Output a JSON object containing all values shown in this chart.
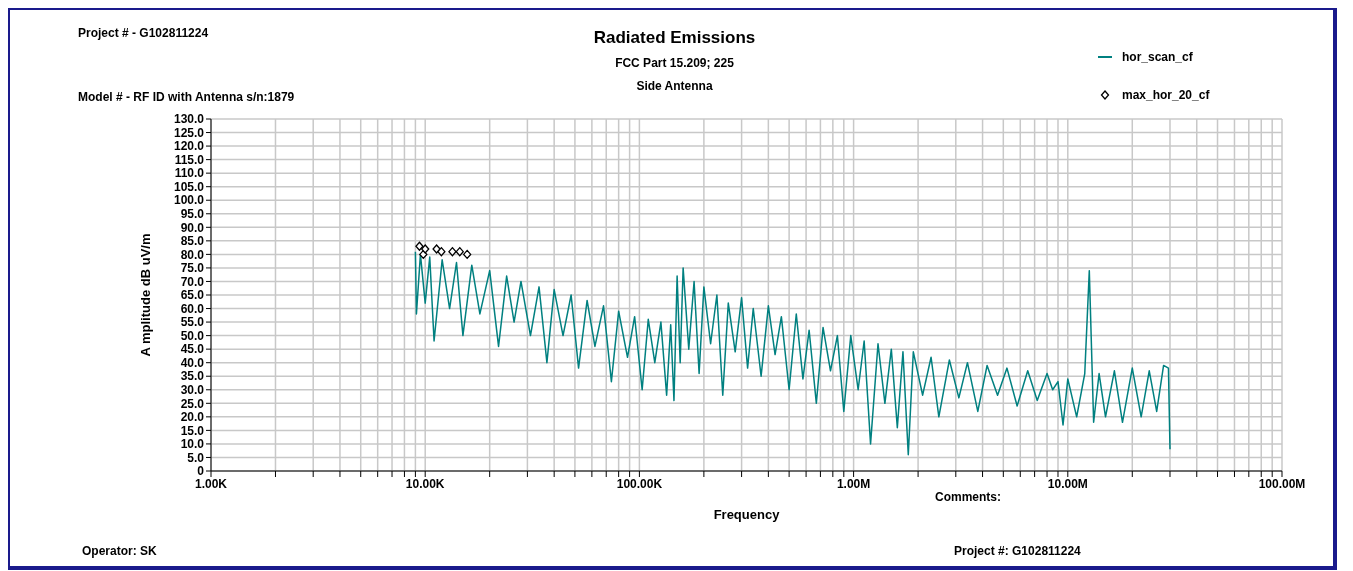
{
  "chart_data": {
    "type": "line",
    "title": "Radiated Emissions",
    "subtitle": "FCC Part 15.209; 225\nSide Antenna",
    "xlabel": "Frequency",
    "ylabel": "A mplitude  dB uV/m",
    "annotations": [
      "Project # - G102811224",
      "Model # - RF ID with Antenna s/n:1879",
      "Comments:",
      "Operator: SK",
      "Project #: G102811224"
    ],
    "log": "x",
    "grid": true,
    "legend": "top right",
    "xlim": [
      1000,
      100000000
    ],
    "xticks": [
      {
        "value": 1000,
        "label": "1.00K"
      },
      {
        "value": 2000,
        "label": null
      },
      {
        "value": 3000,
        "label": null
      },
      {
        "value": 4000,
        "label": null
      },
      {
        "value": 5000,
        "label": null
      },
      {
        "value": 6000,
        "label": null
      },
      {
        "value": 7000,
        "label": null
      },
      {
        "value": 8000,
        "label": null
      },
      {
        "value": 9000,
        "label": null
      },
      {
        "value": 10000,
        "label": "10.00K"
      },
      {
        "value": 20000,
        "label": null
      },
      {
        "value": 30000,
        "label": null
      },
      {
        "value": 40000,
        "label": null
      },
      {
        "value": 50000,
        "label": null
      },
      {
        "value": 60000,
        "label": null
      },
      {
        "value": 70000,
        "label": null
      },
      {
        "value": 80000,
        "label": null
      },
      {
        "value": 90000,
        "label": null
      },
      {
        "value": 100000,
        "label": "100.00K"
      },
      {
        "value": 200000,
        "label": null
      },
      {
        "value": 300000,
        "label": null
      },
      {
        "value": 400000,
        "label": null
      },
      {
        "value": 500000,
        "label": null
      },
      {
        "value": 600000,
        "label": null
      },
      {
        "value": 700000,
        "label": null
      },
      {
        "value": 800000,
        "label": null
      },
      {
        "value": 900000,
        "label": null
      },
      {
        "value": 1000000,
        "label": "1.00M"
      },
      {
        "value": 2000000,
        "label": null
      },
      {
        "value": 3000000,
        "label": null
      },
      {
        "value": 4000000,
        "label": null
      },
      {
        "value": 5000000,
        "label": null
      },
      {
        "value": 6000000,
        "label": null
      },
      {
        "value": 7000000,
        "label": null
      },
      {
        "value": 8000000,
        "label": null
      },
      {
        "value": 9000000,
        "label": null
      },
      {
        "value": 10000000,
        "label": "10.00M"
      },
      {
        "value": 20000000,
        "label": null
      },
      {
        "value": 30000000,
        "label": null
      },
      {
        "value": 40000000,
        "label": null
      },
      {
        "value": 50000000,
        "label": null
      },
      {
        "value": 60000000,
        "label": null
      },
      {
        "value": 70000000,
        "label": null
      },
      {
        "value": 80000000,
        "label": null
      },
      {
        "value": 90000000,
        "label": null
      },
      {
        "value": 100000000,
        "label": "100.00M"
      }
    ],
    "ylim": [
      0,
      130
    ],
    "yticks": [
      0,
      {
        "value": 5,
        "label": "5.0"
      },
      {
        "value": 10,
        "label": "10.0"
      },
      {
        "value": 15,
        "label": "15.0"
      },
      {
        "value": 20,
        "label": "20.0"
      },
      {
        "value": 25,
        "label": "25.0"
      },
      {
        "value": 30,
        "label": "30.0"
      },
      {
        "value": 35,
        "label": "35.0"
      },
      {
        "value": 40,
        "label": "40.0"
      },
      {
        "value": 45,
        "label": "45.0"
      },
      {
        "value": 50,
        "label": "50.0"
      },
      {
        "value": 55,
        "label": "55.0"
      },
      {
        "value": 60,
        "label": "60.0"
      },
      {
        "value": 65,
        "label": "65.0"
      },
      {
        "value": 70,
        "label": "70.0"
      },
      {
        "value": 75,
        "label": "75.0"
      },
      {
        "value": 80,
        "label": "80.0"
      },
      {
        "value": 85,
        "label": "85.0"
      },
      {
        "value": 90,
        "label": "90.0"
      },
      {
        "value": 95,
        "label": "95.0"
      },
      {
        "value": 100,
        "label": "100.0"
      },
      {
        "value": 105,
        "label": "105.0"
      },
      {
        "value": 110,
        "label": "110.0"
      },
      {
        "value": 115,
        "label": "115.0"
      },
      {
        "value": 120,
        "label": "120.0"
      },
      {
        "value": 125,
        "label": "125.0"
      },
      {
        "value": 130,
        "label": "130.0"
      }
    ],
    "series": [
      {
        "name": "hor_scan_cf",
        "type": "line",
        "color": "#008080",
        "marker": "none",
        "x": [
          9000,
          9100,
          9500,
          10000,
          10500,
          11000,
          12000,
          13000,
          14000,
          15000,
          16500,
          18000,
          20000,
          22000,
          24000,
          26000,
          28000,
          31000,
          34000,
          37000,
          40000,
          44000,
          48000,
          52000,
          57000,
          62000,
          68000,
          74000,
          80000,
          88000,
          95000,
          103000,
          110000,
          118000,
          126000,
          134000,
          140000,
          145000,
          150000,
          155000,
          160000,
          170000,
          180000,
          190000,
          200000,
          215000,
          230000,
          245000,
          260000,
          280000,
          300000,
          320000,
          340000,
          370000,
          400000,
          430000,
          460000,
          500000,
          540000,
          580000,
          620000,
          670000,
          720000,
          780000,
          840000,
          900000,
          970000,
          1050000,
          1120000,
          1200000,
          1300000,
          1400000,
          1500000,
          1600000,
          1700000,
          1800000,
          1900000,
          2100000,
          2300000,
          2500000,
          2800000,
          3100000,
          3400000,
          3800000,
          4200000,
          4700000,
          5200000,
          5800000,
          6500000,
          7200000,
          8000000,
          8500000,
          9000000,
          9500000,
          10000000,
          11000000,
          12000000,
          12600000,
          13200000,
          14000000,
          15000000,
          16500000,
          18000000,
          20000000,
          22000000,
          24000000,
          26000000,
          28000000,
          29500000,
          30000000
        ],
        "values": [
          81,
          58,
          80,
          62,
          79,
          48,
          78,
          60,
          77,
          50,
          76,
          58,
          74,
          46,
          72,
          55,
          70,
          50,
          68,
          40,
          67,
          50,
          65,
          38,
          63,
          46,
          61,
          33,
          59,
          42,
          57,
          30,
          56,
          40,
          55,
          28,
          54,
          26,
          72,
          40,
          75,
          45,
          70,
          36,
          68,
          47,
          65,
          28,
          62,
          44,
          64,
          38,
          60,
          35,
          61,
          43,
          57,
          30,
          58,
          34,
          52,
          25,
          53,
          37,
          50,
          22,
          50,
          30,
          48,
          10,
          47,
          25,
          45,
          16,
          44,
          6,
          44,
          28,
          42,
          20,
          41,
          27,
          40,
          22,
          39,
          28,
          38,
          24,
          37,
          26,
          36,
          30,
          33,
          17,
          34,
          20,
          36,
          74,
          18,
          36,
          20,
          37,
          18,
          38,
          20,
          37,
          22,
          39,
          38,
          8
        ]
      },
      {
        "name": "max_hor_20_cf",
        "type": "scatter",
        "color": "#000000",
        "marker": "diamond",
        "x": [
          9400,
          9800,
          10000,
          11300,
          11900,
          13400,
          14500,
          15700
        ],
        "values": [
          83,
          80,
          82,
          82,
          81,
          81,
          81,
          80
        ]
      }
    ]
  }
}
